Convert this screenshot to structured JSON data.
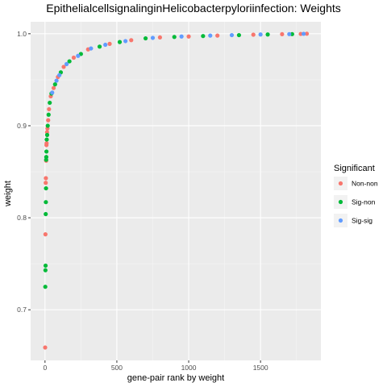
{
  "chart_data": {
    "type": "scatter",
    "title": "EpithelialcellsignalinginHelicobacterpyloriinfection: Weights",
    "xlabel": "gene-pair rank by weight",
    "ylabel": "weight",
    "xlim": [
      -100,
      1920
    ],
    "ylim": [
      0.645,
      1.013
    ],
    "x_ticks": [
      0,
      500,
      1000,
      1500
    ],
    "x_tick_labels": [
      "0",
      "500",
      "1000",
      "1500"
    ],
    "y_ticks": [
      0.7,
      0.8,
      0.9,
      1.0
    ],
    "y_tick_labels": [
      "0.7",
      "0.8",
      "0.9",
      "1.0"
    ],
    "grid": true,
    "legend": {
      "title": "Significant",
      "placement": "right",
      "entries": [
        {
          "name": "Non-non",
          "color": "#F8766D"
        },
        {
          "name": "Sig-non",
          "color": "#00BA38"
        },
        {
          "name": "Sig-sig",
          "color": "#619CFF"
        }
      ]
    },
    "series": [
      {
        "name": "Non-non",
        "color": "#F8766D",
        "points": [
          [
            1,
            0.659
          ],
          [
            3,
            0.782
          ],
          [
            5,
            0.838
          ],
          [
            6,
            0.843
          ],
          [
            8,
            0.862
          ],
          [
            10,
            0.879
          ],
          [
            11,
            0.881
          ],
          [
            14,
            0.893
          ],
          [
            17,
            0.897
          ],
          [
            22,
            0.906
          ],
          [
            28,
            0.918
          ],
          [
            40,
            0.932
          ],
          [
            60,
            0.941
          ],
          [
            90,
            0.953
          ],
          [
            130,
            0.964
          ],
          [
            200,
            0.974
          ],
          [
            300,
            0.983
          ],
          [
            450,
            0.989
          ],
          [
            600,
            0.993
          ],
          [
            800,
            0.996
          ],
          [
            1000,
            0.997
          ],
          [
            1200,
            0.998
          ],
          [
            1450,
            0.999
          ],
          [
            1650,
            0.9995
          ],
          [
            1780,
            0.9998
          ],
          [
            1822,
            1.0
          ]
        ]
      },
      {
        "name": "Sig-non",
        "color": "#00BA38",
        "points": [
          [
            2,
            0.725
          ],
          [
            3,
            0.743
          ],
          [
            4,
            0.748
          ],
          [
            5,
            0.804
          ],
          [
            6,
            0.817
          ],
          [
            7,
            0.832
          ],
          [
            8,
            0.863
          ],
          [
            9,
            0.866
          ],
          [
            10,
            0.872
          ],
          [
            12,
            0.885
          ],
          [
            15,
            0.89
          ],
          [
            19,
            0.9
          ],
          [
            25,
            0.912
          ],
          [
            33,
            0.925
          ],
          [
            45,
            0.935
          ],
          [
            70,
            0.945
          ],
          [
            110,
            0.958
          ],
          [
            170,
            0.97
          ],
          [
            250,
            0.978
          ],
          [
            380,
            0.986
          ],
          [
            520,
            0.991
          ],
          [
            700,
            0.995
          ],
          [
            900,
            0.9965
          ],
          [
            1100,
            0.9975
          ],
          [
            1350,
            0.9985
          ],
          [
            1550,
            0.9992
          ],
          [
            1720,
            0.9996
          ]
        ]
      },
      {
        "name": "Sig-sig",
        "color": "#619CFF",
        "points": [
          [
            50,
            0.936
          ],
          [
            80,
            0.949
          ],
          [
            100,
            0.955
          ],
          [
            150,
            0.967
          ],
          [
            230,
            0.976
          ],
          [
            320,
            0.984
          ],
          [
            420,
            0.988
          ],
          [
            560,
            0.992
          ],
          [
            750,
            0.9955
          ],
          [
            950,
            0.997
          ],
          [
            1150,
            0.998
          ],
          [
            1300,
            0.9985
          ],
          [
            1500,
            0.9992
          ],
          [
            1700,
            0.9996
          ],
          [
            1800,
            0.9999
          ]
        ]
      }
    ]
  }
}
